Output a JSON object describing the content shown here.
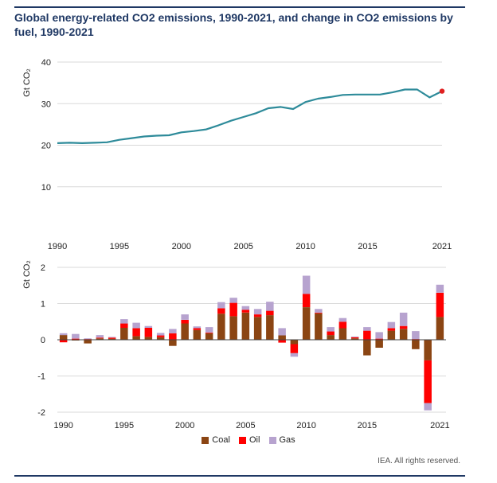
{
  "title": "Global energy-related CO2 emissions, 1990-2021, and change in CO2 emissions by fuel, 1990-2021",
  "credit": "IEA. All rights reserved.",
  "colors": {
    "line": "#2e8b9a",
    "highlight": "#e02020",
    "coal": "#8b4513",
    "oil": "#ff0000",
    "gas": "#b7a3cf",
    "grid": "#d9d9d9",
    "rule": "#1f3864"
  },
  "chart_data": [
    {
      "type": "line",
      "ylabel": "Gt CO₂",
      "ylim": [
        0,
        40
      ],
      "yticks": [
        10,
        20,
        30,
        40
      ],
      "xtick_labels": [
        "1990",
        "1995",
        "2000",
        "2005",
        "2010",
        "2015",
        "2021"
      ],
      "grid": true,
      "x": [
        1990,
        1991,
        1992,
        1993,
        1994,
        1995,
        1996,
        1997,
        1998,
        1999,
        2000,
        2001,
        2002,
        2003,
        2004,
        2005,
        2006,
        2007,
        2008,
        2009,
        2010,
        2011,
        2012,
        2013,
        2014,
        2015,
        2016,
        2017,
        2018,
        2019,
        2020,
        2021
      ],
      "values": [
        20.5,
        20.6,
        20.5,
        20.6,
        20.7,
        21.3,
        21.7,
        22.1,
        22.3,
        22.4,
        23.1,
        23.4,
        23.8,
        24.8,
        25.9,
        26.8,
        27.7,
        28.9,
        29.2,
        28.7,
        30.4,
        31.2,
        31.6,
        32.1,
        32.2,
        32.2,
        32.2,
        32.7,
        33.4,
        33.4,
        31.5,
        33.0
      ],
      "highlight_point": {
        "x": 2021,
        "y": 33.0
      }
    },
    {
      "type": "bar",
      "stacked": true,
      "ylabel": "Gt CO₂",
      "ylim": [
        -2,
        2
      ],
      "yticks": [
        -2,
        -1,
        0,
        1,
        2
      ],
      "xtick_labels": [
        "1990",
        "1995",
        "2000",
        "2005",
        "2010",
        "2015",
        "2021"
      ],
      "grid": true,
      "legend": "bottom",
      "categories": [
        1990,
        1991,
        1992,
        1993,
        1994,
        1995,
        1996,
        1997,
        1998,
        1999,
        2000,
        2001,
        2002,
        2003,
        2004,
        2005,
        2006,
        2007,
        2008,
        2009,
        2010,
        2011,
        2012,
        2013,
        2014,
        2015,
        2016,
        2017,
        2018,
        2019,
        2020,
        2021
      ],
      "series": [
        {
          "name": "Coal",
          "values": [
            0.13,
            -0.02,
            -0.1,
            0.04,
            0.03,
            0.33,
            0.1,
            0.08,
            0.07,
            -0.17,
            0.45,
            0.27,
            0.18,
            0.72,
            0.65,
            0.75,
            0.63,
            0.68,
            0.12,
            -0.12,
            0.9,
            0.73,
            0.13,
            0.32,
            0.04,
            -0.43,
            -0.22,
            0.25,
            0.3,
            -0.26,
            -0.57,
            0.63
          ]
        },
        {
          "name": "Oil",
          "values": [
            -0.07,
            0.03,
            0.02,
            0.02,
            0.03,
            0.12,
            0.22,
            0.25,
            0.05,
            0.18,
            0.1,
            0.05,
            0.02,
            0.15,
            0.37,
            0.08,
            0.07,
            0.12,
            -0.08,
            -0.25,
            0.37,
            0.02,
            0.1,
            0.18,
            0.03,
            0.25,
            0.03,
            0.07,
            0.08,
            0.02,
            -1.18,
            0.67
          ]
        },
        {
          "name": "Gas",
          "values": [
            0.05,
            0.13,
            0.02,
            0.07,
            0.02,
            0.12,
            0.15,
            0.05,
            0.07,
            0.12,
            0.15,
            0.05,
            0.15,
            0.17,
            0.14,
            0.1,
            0.15,
            0.25,
            0.2,
            -0.1,
            0.5,
            0.1,
            0.12,
            0.1,
            0.02,
            0.1,
            0.18,
            0.17,
            0.37,
            0.22,
            -0.2,
            0.22
          ]
        }
      ]
    }
  ]
}
